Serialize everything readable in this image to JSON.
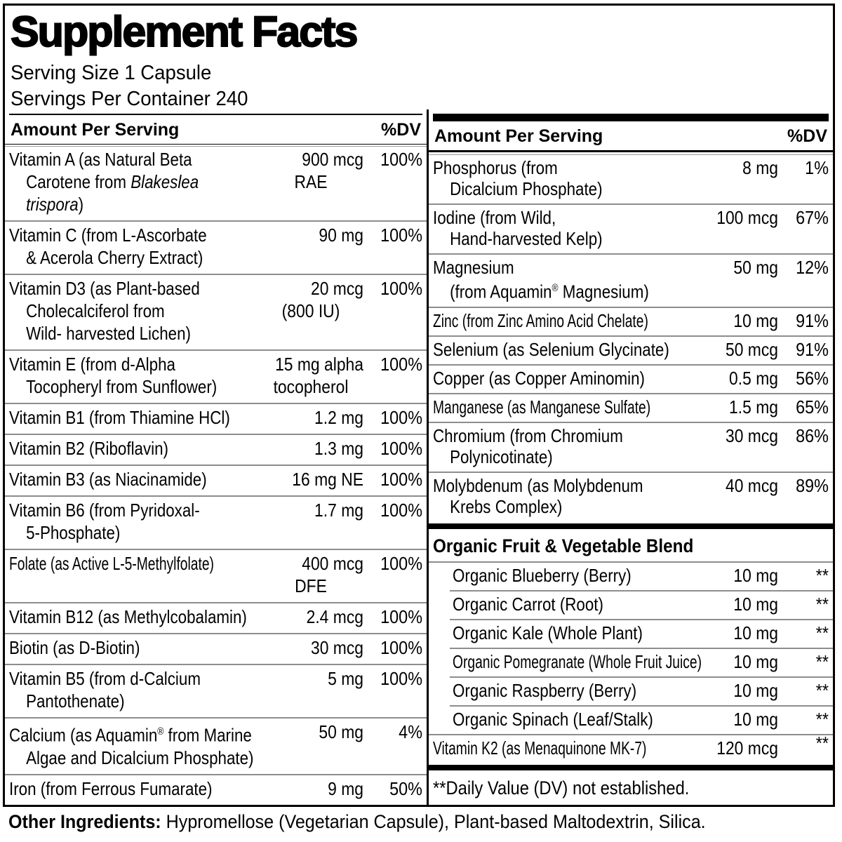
{
  "title": "Supplement Facts",
  "serving_size": "Serving Size 1 Capsule",
  "servings_per_container": "Servings Per Container 240",
  "column_header": {
    "amount": "Amount Per Serving",
    "dv": "%DV"
  },
  "colors": {
    "text": "#000000",
    "section_bar": "#000000",
    "hairline": "#8d8d8d",
    "background": "#ffffff"
  },
  "left_rows": [
    {
      "name": [
        [
          "Vitamin A (as Natural Beta"
        ],
        [
          "Carotene from ",
          {
            "i": "Blakeslea"
          }
        ],
        [
          {
            "i": "trispora"
          },
          ")"
        ]
      ],
      "amount": [
        "900 mcg",
        "RAE"
      ],
      "dv": "100%"
    },
    {
      "name": [
        [
          "Vitamin C (from L-Ascorbate"
        ],
        [
          "& Acerola Cherry Extract)"
        ]
      ],
      "amount": [
        "90 mg"
      ],
      "dv": "100%"
    },
    {
      "name": [
        [
          "Vitamin D3 (as Plant-based"
        ],
        [
          "Cholecalciferol from"
        ],
        [
          "Wild- harvested Lichen)"
        ]
      ],
      "amount": [
        "20 mcg",
        "(800 IU)"
      ],
      "dv": "100%"
    },
    {
      "name": [
        [
          "Vitamin E (from d-Alpha"
        ],
        [
          "Tocopheryl from Sunflower)"
        ]
      ],
      "amount": [
        "15 mg alpha",
        "tocopherol"
      ],
      "dv": "100%"
    },
    {
      "name": [
        [
          "Vitamin B1 (from Thiamine HCl)"
        ]
      ],
      "amount": [
        "1.2 mg"
      ],
      "dv": "100%"
    },
    {
      "name": [
        [
          "Vitamin B2 (Riboflavin)"
        ]
      ],
      "amount": [
        "1.3 mg"
      ],
      "dv": "100%"
    },
    {
      "name": [
        [
          "Vitamin B3 (as Niacinamide)"
        ]
      ],
      "amount": [
        "16 mg NE"
      ],
      "dv": "100%"
    },
    {
      "name": [
        [
          "Vitamin B6 (from Pyridoxal-"
        ],
        [
          "5-Phosphate)"
        ]
      ],
      "amount": [
        "1.7 mg"
      ],
      "dv": "100%"
    },
    {
      "name": [
        [
          "Folate (as Active L-5-Methylfolate)"
        ]
      ],
      "amount": [
        "400 mcg",
        "DFE"
      ],
      "dv": "100%",
      "tight": true
    },
    {
      "name": [
        [
          "Vitamin B12 (as Methylcobalamin)"
        ]
      ],
      "amount": [
        "2.4 mcg"
      ],
      "dv": "100%"
    },
    {
      "name": [
        [
          "Biotin (as D-Biotin)"
        ]
      ],
      "amount": [
        "30 mcg"
      ],
      "dv": "100%"
    },
    {
      "name": [
        [
          "Vitamin B5 (from d-Calcium"
        ],
        [
          "Pantothenate)"
        ]
      ],
      "amount": [
        "5 mg"
      ],
      "dv": "100%"
    },
    {
      "name": [
        [
          "Calcium (as Aquamin",
          {
            "s": "®"
          },
          " from Marine"
        ],
        [
          "Algae and Dicalcium Phosphate)"
        ]
      ],
      "amount": [
        "50 mg"
      ],
      "dv": "4%"
    },
    {
      "name": [
        [
          "Iron (from Ferrous Fumarate)"
        ]
      ],
      "amount": [
        "9 mg"
      ],
      "dv": "50%"
    }
  ],
  "right_rows": [
    {
      "name": [
        [
          "Phosphorus (from"
        ],
        [
          "Dicalcium Phosphate)"
        ]
      ],
      "amount": [
        "8 mg"
      ],
      "dv": "1%"
    },
    {
      "name": [
        [
          "Iodine (from Wild,"
        ],
        [
          "Hand-harvested Kelp)"
        ]
      ],
      "amount": [
        "100 mcg"
      ],
      "dv": "67%"
    },
    {
      "name": [
        [
          "Magnesium"
        ],
        [
          "(from Aquamin",
          {
            "s": "®"
          },
          " Magnesium)"
        ]
      ],
      "amount": [
        "50 mg"
      ],
      "dv": "12%"
    },
    {
      "name": [
        [
          "Zinc (from Zinc Amino Acid Chelate)"
        ]
      ],
      "amount": [
        "10 mg"
      ],
      "dv": "91%",
      "tight": true
    },
    {
      "name": [
        [
          "Selenium (as Selenium Glycinate)"
        ]
      ],
      "amount": [
        "50 mcg"
      ],
      "dv": "91%"
    },
    {
      "name": [
        [
          "Copper (as Copper Aminomin)"
        ]
      ],
      "amount": [
        "0.5 mg"
      ],
      "dv": "56%"
    },
    {
      "name": [
        [
          "Manganese (as Manganese Sulfate)"
        ]
      ],
      "amount": [
        "1.5 mg"
      ],
      "dv": "65%",
      "tight": true
    },
    {
      "name": [
        [
          "Chromium (from Chromium"
        ],
        [
          "Polynicotinate)"
        ]
      ],
      "amount": [
        "30 mcg"
      ],
      "dv": "86%"
    },
    {
      "name": [
        [
          "Molybdenum (as Molybdenum"
        ],
        [
          "Krebs Complex)"
        ]
      ],
      "amount": [
        "40 mcg"
      ],
      "dv": "89%"
    }
  ],
  "blend": {
    "header": "Organic Fruit & Vegetable Blend",
    "rows": [
      {
        "name": [
          [
            "Organic Blueberry (Berry)"
          ]
        ],
        "amount": [
          "10 mg"
        ],
        "dv": "**",
        "indent": true,
        "sep": "none"
      },
      {
        "name": [
          [
            "Organic Carrot (Root)"
          ]
        ],
        "amount": [
          "10 mg"
        ],
        "dv": "**",
        "indent": true,
        "sep": "indent"
      },
      {
        "name": [
          [
            "Organic Kale (Whole Plant)"
          ]
        ],
        "amount": [
          "10 mg"
        ],
        "dv": "**",
        "indent": true,
        "sep": "indent"
      },
      {
        "name": [
          [
            "Organic Pomegranate (Whole Fruit Juice)"
          ]
        ],
        "amount": [
          "10 mg"
        ],
        "dv": "**",
        "indent": true,
        "sep": "indent",
        "tight": true
      },
      {
        "name": [
          [
            "Organic Raspberry (Berry)"
          ]
        ],
        "amount": [
          "10 mg"
        ],
        "dv": "**",
        "indent": true,
        "sep": "indent"
      },
      {
        "name": [
          [
            "Organic Spinach (Leaf/Stalk)"
          ]
        ],
        "amount": [
          "10 mg"
        ],
        "dv": "**",
        "indent": true,
        "sep": "indent"
      },
      {
        "name": [
          [
            "Vitamin K2 (as Menaquinone MK-7)"
          ]
        ],
        "amount": [
          "120 mcg"
        ],
        "dv": "**",
        "sep": "full",
        "dv_top": true,
        "tight": true
      }
    ]
  },
  "footnote": "**Daily Value (DV) not established.",
  "other_ingredients": {
    "label": "Other Ingredients:",
    "text": "Hypromellose (Vegetarian Capsule), Plant-based Maltodextrin, Silica."
  }
}
